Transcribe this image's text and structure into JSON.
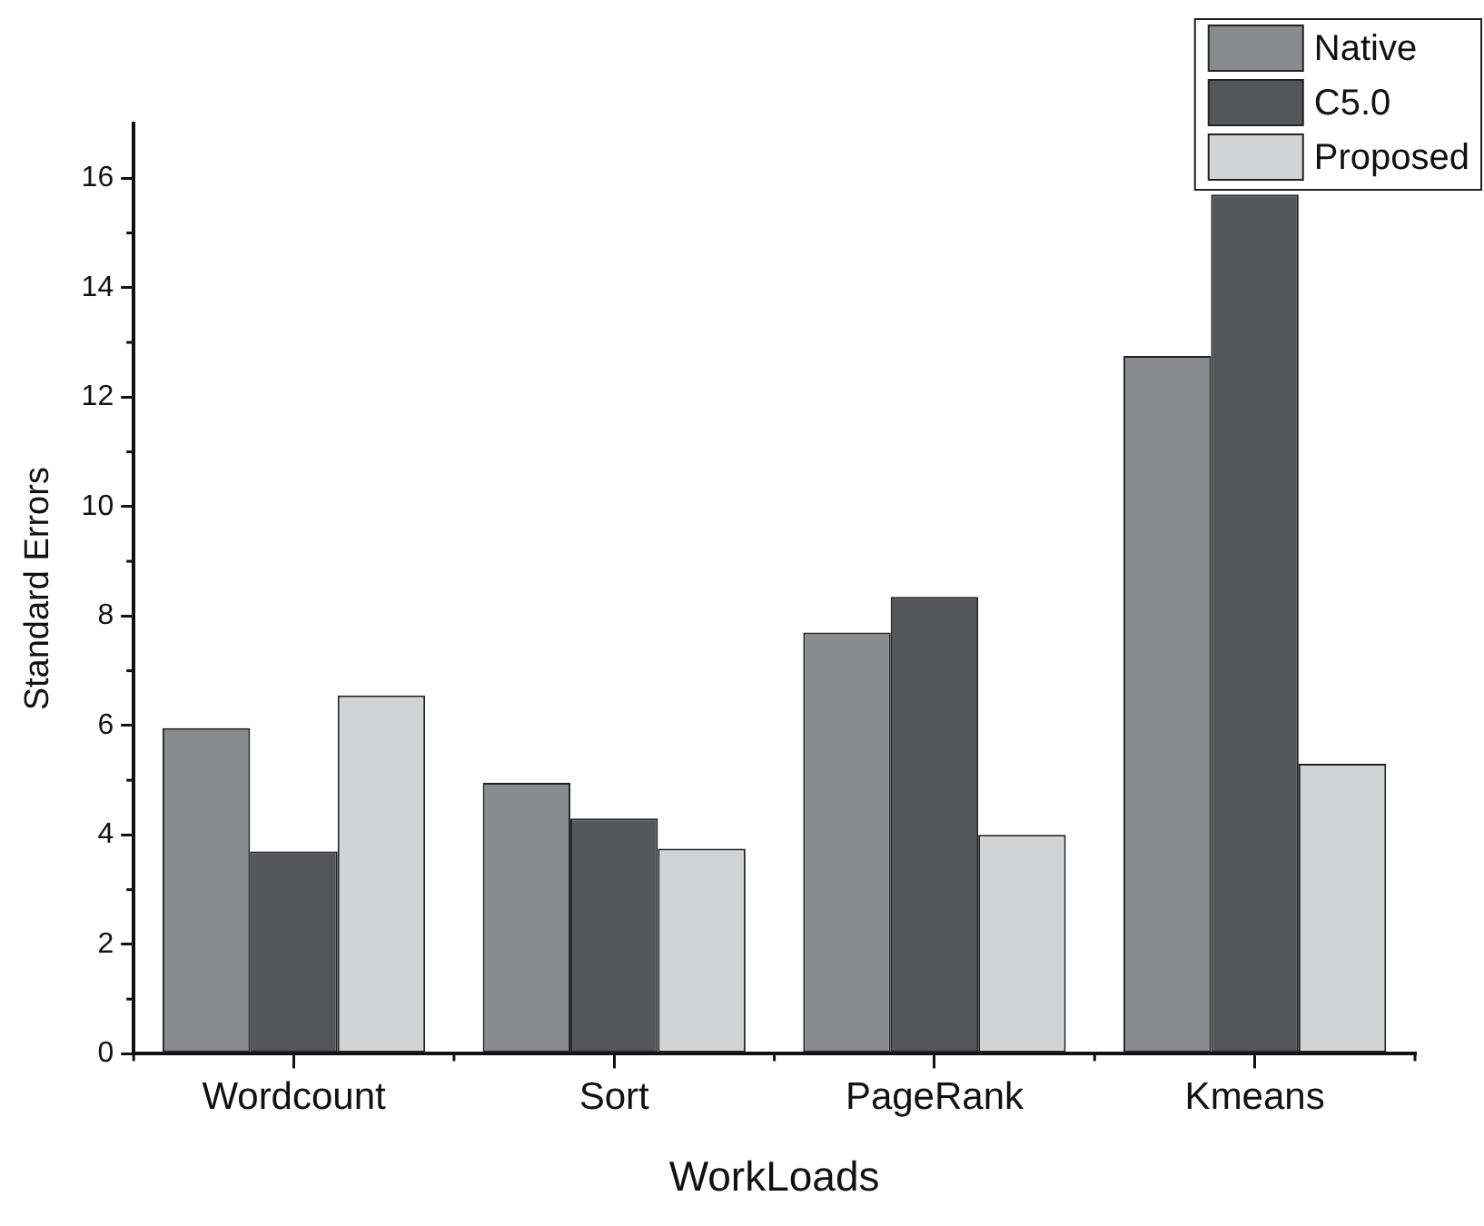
{
  "chart_data": {
    "type": "bar",
    "xlabel": "WorkLoads",
    "ylabel": "Standard Errors",
    "categories": [
      "Wordcount",
      "Sort",
      "PageRank",
      "Kmeans"
    ],
    "series": [
      {
        "name": "Native",
        "color": "#8a8b8f",
        "values": [
          5.95,
          4.95,
          7.7,
          12.75
        ]
      },
      {
        "name": "C5.0",
        "color": "#555659",
        "values": [
          3.7,
          4.3,
          8.35,
          15.7
        ]
      },
      {
        "name": "Proposed",
        "color": "#d2d3d5",
        "values": [
          6.55,
          3.75,
          4.0,
          5.3
        ]
      }
    ],
    "ylim": [
      0,
      17
    ],
    "yticks": [
      0,
      2,
      4,
      6,
      8,
      10,
      12,
      14,
      16
    ],
    "grid": false,
    "legend": "top right"
  }
}
